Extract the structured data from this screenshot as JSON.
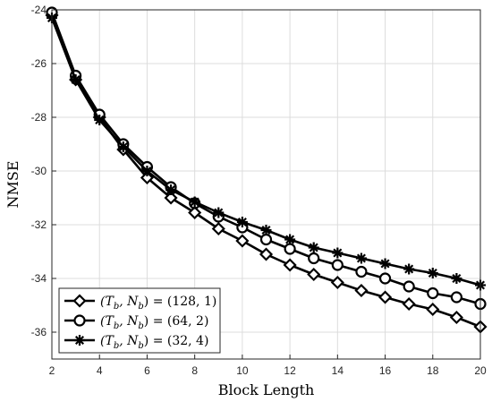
{
  "chart_data": {
    "type": "line",
    "xlabel": "Block Length",
    "ylabel": "NMSE",
    "xlim": [
      2,
      20
    ],
    "ylim": [
      -37,
      -24
    ],
    "xticks": [
      2,
      4,
      6,
      8,
      10,
      12,
      14,
      16,
      18,
      20
    ],
    "yticks": [
      -24,
      -26,
      -28,
      -30,
      -32,
      -34,
      -36
    ],
    "grid": true,
    "legend_position": "bottom-left",
    "x": [
      2,
      3,
      4,
      5,
      6,
      7,
      8,
      9,
      10,
      11,
      12,
      13,
      14,
      15,
      16,
      17,
      18,
      19,
      20
    ],
    "series": [
      {
        "name": "(T_b, N_b) = (128, 1)",
        "marker": "diamond",
        "values": [
          -24.2,
          -26.6,
          -28.0,
          -29.2,
          -30.25,
          -31.0,
          -31.55,
          -32.15,
          -32.6,
          -33.1,
          -33.5,
          -33.85,
          -34.15,
          -34.45,
          -34.7,
          -34.95,
          -35.15,
          -35.45,
          -35.8
        ]
      },
      {
        "name": "(T_b, N_b) = (64, 2)",
        "marker": "circle",
        "values": [
          -24.1,
          -26.45,
          -27.9,
          -29.0,
          -29.85,
          -30.6,
          -31.2,
          -31.7,
          -32.1,
          -32.55,
          -32.9,
          -33.25,
          -33.5,
          -33.75,
          -34.0,
          -34.3,
          -34.55,
          -34.7,
          -34.95
        ]
      },
      {
        "name": "(T_b, N_b) = (32, 4)",
        "marker": "asterisk",
        "values": [
          -24.3,
          -26.6,
          -28.1,
          -29.1,
          -30.0,
          -30.7,
          -31.15,
          -31.55,
          -31.9,
          -32.2,
          -32.55,
          -32.85,
          -33.05,
          -33.25,
          -33.45,
          -33.65,
          -33.8,
          -34.0,
          -34.25
        ]
      }
    ],
    "legend": [
      {
        "math": "(T",
        "sub1": "b",
        "mid": ", N",
        "sub2": "b",
        "rest": ") = (128, 1)"
      },
      {
        "math": "(T",
        "sub1": "b",
        "mid": ", N",
        "sub2": "b",
        "rest": ") = (64, 2)"
      },
      {
        "math": "(T",
        "sub1": "b",
        "mid": ", N",
        "sub2": "b",
        "rest": ") = (32, 4)"
      }
    ]
  }
}
